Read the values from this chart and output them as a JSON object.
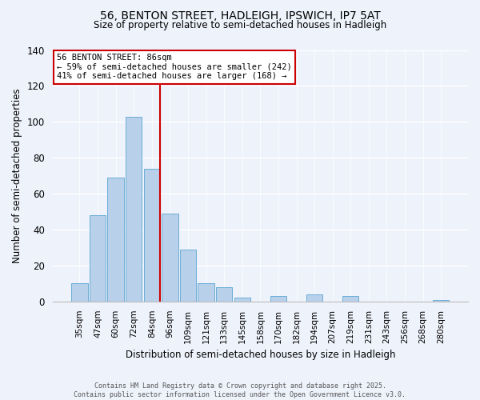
{
  "title_line1": "56, BENTON STREET, HADLEIGH, IPSWICH, IP7 5AT",
  "title_line2": "Size of property relative to semi-detached houses in Hadleigh",
  "xlabel": "Distribution of semi-detached houses by size in Hadleigh",
  "ylabel": "Number of semi-detached properties",
  "categories": [
    "35sqm",
    "47sqm",
    "60sqm",
    "72sqm",
    "84sqm",
    "96sqm",
    "109sqm",
    "121sqm",
    "133sqm",
    "145sqm",
    "158sqm",
    "170sqm",
    "182sqm",
    "194sqm",
    "207sqm",
    "219sqm",
    "231sqm",
    "243sqm",
    "256sqm",
    "268sqm",
    "280sqm"
  ],
  "values": [
    10,
    48,
    69,
    103,
    74,
    49,
    29,
    10,
    8,
    2,
    0,
    3,
    0,
    4,
    0,
    3,
    0,
    0,
    0,
    0,
    1
  ],
  "bar_color": "#b8d0ea",
  "bar_edge_color": "#6baed6",
  "reference_line_color": "#cc0000",
  "annotation_title": "56 BENTON STREET: 86sqm",
  "annotation_line1": "← 59% of semi-detached houses are smaller (242)",
  "annotation_line2": "41% of semi-detached houses are larger (168) →",
  "annotation_box_color": "#ffffff",
  "annotation_box_edge_color": "#cc0000",
  "ylim": [
    0,
    140
  ],
  "yticks": [
    0,
    20,
    40,
    60,
    80,
    100,
    120,
    140
  ],
  "footer_line1": "Contains HM Land Registry data © Crown copyright and database right 2025.",
  "footer_line2": "Contains public sector information licensed under the Open Government Licence v3.0.",
  "background_color": "#eef2fb",
  "grid_color": "#ffffff",
  "title_fontsize": 10,
  "subtitle_fontsize": 8.5,
  "xlabel_fontsize": 8.5,
  "ylabel_fontsize": 8.5,
  "tick_fontsize": 7.5,
  "annotation_fontsize": 7.5,
  "footer_fontsize": 6.0
}
